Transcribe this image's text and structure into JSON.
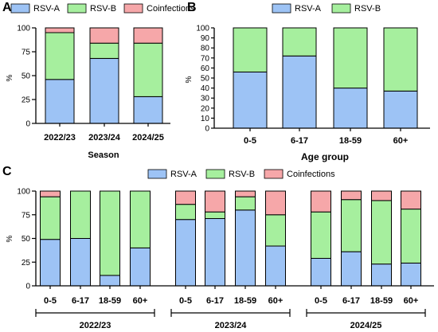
{
  "colors": {
    "rsv_a": "#9dc3f5",
    "rsv_b": "#a6ef9e",
    "coinfections": "#f6a7a9",
    "axis": "#000000"
  },
  "chart_data": [
    {
      "panel": "A",
      "type": "bar",
      "stacked": true,
      "xlabel": "Season",
      "ylabel": "%",
      "ylim": [
        0,
        100
      ],
      "yticks": [
        "0",
        "25",
        "50",
        "75",
        "100"
      ],
      "categories": [
        "2022/23",
        "2023/24",
        "2024/25"
      ],
      "legend": [
        "RSV-A",
        "RSV-B",
        "Coinfections"
      ],
      "series": [
        {
          "name": "RSV-A",
          "values": [
            46,
            68,
            28
          ]
        },
        {
          "name": "RSV-B",
          "values": [
            49,
            16,
            56
          ]
        },
        {
          "name": "Coinfections",
          "values": [
            5,
            16,
            16
          ]
        }
      ]
    },
    {
      "panel": "B",
      "type": "bar",
      "stacked": true,
      "xlabel": "Age group",
      "ylabel": "%",
      "ylim": [
        0,
        100
      ],
      "yticks": [
        "0",
        "10",
        "20",
        "30",
        "40",
        "50",
        "60",
        "70",
        "80",
        "90",
        "100"
      ],
      "categories": [
        "0-5",
        "6-17",
        "18-59",
        "60+"
      ],
      "legend": [
        "RSV-A",
        "RSV-B"
      ],
      "series": [
        {
          "name": "RSV-A",
          "values": [
            56,
            72,
            40,
            37
          ]
        },
        {
          "name": "RSV-B",
          "values": [
            44,
            28,
            60,
            63
          ]
        }
      ]
    },
    {
      "panel": "C",
      "type": "bar",
      "stacked": true,
      "ylabel": "%",
      "ylim": [
        0,
        100
      ],
      "yticks": [
        "0",
        "25",
        "50",
        "75",
        "100"
      ],
      "legend": [
        "RSV-A",
        "RSV-B",
        "Coinfections"
      ],
      "groups": [
        {
          "name": "2022/23",
          "categories": [
            "0-5",
            "6-17",
            "18-59",
            "60+"
          ],
          "series": [
            {
              "name": "RSV-A",
              "values": [
                49,
                50,
                11,
                40
              ]
            },
            {
              "name": "RSV-B",
              "values": [
                45,
                50,
                89,
                60
              ]
            },
            {
              "name": "Coinfections",
              "values": [
                6,
                0,
                0,
                0
              ]
            }
          ]
        },
        {
          "name": "2023/24",
          "categories": [
            "0-5",
            "6-17",
            "18-59",
            "60+"
          ],
          "series": [
            {
              "name": "RSV-A",
              "values": [
                70,
                71,
                80,
                42
              ]
            },
            {
              "name": "RSV-B",
              "values": [
                16,
                7,
                14,
                33
              ]
            },
            {
              "name": "Coinfections",
              "values": [
                14,
                22,
                6,
                25
              ]
            }
          ]
        },
        {
          "name": "2024/25",
          "categories": [
            "0-5",
            "6-17",
            "18-59",
            "60+"
          ],
          "series": [
            {
              "name": "RSV-A",
              "values": [
                29,
                36,
                23,
                24
              ]
            },
            {
              "name": "RSV-B",
              "values": [
                49,
                55,
                67,
                57
              ]
            },
            {
              "name": "Coinfections",
              "values": [
                22,
                9,
                10,
                19
              ]
            }
          ]
        }
      ]
    }
  ]
}
